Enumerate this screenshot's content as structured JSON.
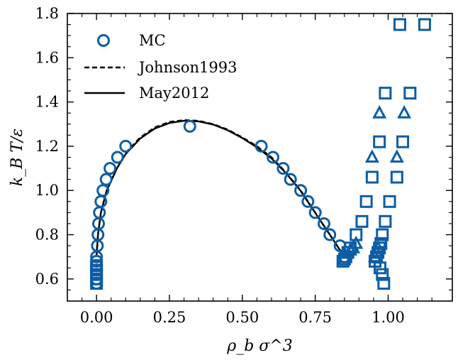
{
  "chart_data": {
    "type": "scatter",
    "xlabel": "ρ_b σ^3",
    "ylabel": "k_B T/ε",
    "xlim": [
      -0.1,
      1.22
    ],
    "ylim": [
      0.5,
      1.8
    ],
    "xticks": [
      "0.00",
      "0.25",
      "0.50",
      "0.75",
      "1.00"
    ],
    "yticks": [
      "0.6",
      "0.8",
      "1.0",
      "1.2",
      "1.4",
      "1.6",
      "1.8"
    ],
    "xtick_values": [
      0.0,
      0.25,
      0.5,
      0.75,
      1.0
    ],
    "ytick_values": [
      0.6,
      0.8,
      1.0,
      1.2,
      1.4,
      1.6,
      1.8
    ],
    "grid": false,
    "legend_position": "top-left",
    "colors": {
      "marker": "#0C5DA5",
      "line": "#000000"
    },
    "series": [
      {
        "name": "MC",
        "marker": "circle",
        "points": [
          [
            0.0,
            0.58
          ],
          [
            0.0,
            0.6
          ],
          [
            0.0,
            0.62
          ],
          [
            0.0,
            0.64
          ],
          [
            0.0,
            0.66
          ],
          [
            0.0,
            0.68
          ],
          [
            0.0,
            0.7
          ],
          [
            0.003,
            0.75
          ],
          [
            0.005,
            0.8
          ],
          [
            0.007,
            0.85
          ],
          [
            0.01,
            0.9
          ],
          [
            0.015,
            0.95
          ],
          [
            0.022,
            1.0
          ],
          [
            0.033,
            1.05
          ],
          [
            0.046,
            1.1
          ],
          [
            0.072,
            1.15
          ],
          [
            0.1,
            1.2
          ],
          [
            0.32,
            1.29
          ],
          [
            0.565,
            1.2
          ],
          [
            0.605,
            1.15
          ],
          [
            0.64,
            1.1
          ],
          [
            0.665,
            1.05
          ],
          [
            0.7,
            1.0
          ],
          [
            0.725,
            0.95
          ],
          [
            0.75,
            0.9
          ],
          [
            0.78,
            0.85
          ],
          [
            0.8,
            0.8
          ],
          [
            0.835,
            0.75
          ],
          [
            0.85,
            0.7
          ]
        ]
      },
      {
        "name": "",
        "marker": "square",
        "points": [
          [
            0.0,
            0.58
          ],
          [
            0.0,
            0.6
          ],
          [
            0.0,
            0.62
          ],
          [
            0.0,
            0.64
          ],
          [
            0.0,
            0.66
          ],
          [
            0.845,
            0.68
          ],
          [
            0.85,
            0.69
          ],
          [
            0.855,
            0.7
          ],
          [
            0.862,
            0.72
          ],
          [
            0.87,
            0.74
          ],
          [
            0.89,
            0.8
          ],
          [
            0.91,
            0.86
          ],
          [
            0.925,
            0.95
          ],
          [
            0.945,
            1.06
          ],
          [
            0.97,
            1.22
          ],
          [
            0.99,
            1.44
          ],
          [
            1.04,
            1.75
          ],
          [
            0.955,
            0.68
          ],
          [
            0.96,
            0.7
          ],
          [
            0.965,
            0.72
          ],
          [
            0.97,
            0.74
          ],
          [
            0.975,
            0.76
          ],
          [
            0.98,
            0.8
          ],
          [
            0.99,
            0.86
          ],
          [
            1.005,
            0.95
          ],
          [
            1.03,
            1.06
          ],
          [
            1.05,
            1.22
          ],
          [
            1.075,
            1.44
          ],
          [
            1.125,
            1.75
          ],
          [
            0.972,
            0.65
          ],
          [
            0.98,
            0.62
          ],
          [
            0.985,
            0.58
          ]
        ]
      },
      {
        "name": "",
        "marker": "triangle",
        "points": [
          [
            0.88,
            0.74
          ],
          [
            0.89,
            0.76
          ],
          [
            0.87,
            0.73
          ],
          [
            0.945,
            1.15
          ],
          [
            0.97,
            1.35
          ],
          [
            0.955,
            0.7
          ],
          [
            0.96,
            0.72
          ],
          [
            0.965,
            0.74
          ],
          [
            1.03,
            1.15
          ],
          [
            1.055,
            1.35
          ]
        ]
      },
      {
        "name": "Johnson1993",
        "style": "dashed",
        "points": [
          [
            0.0,
            0.7
          ],
          [
            0.005,
            0.8
          ],
          [
            0.015,
            0.9
          ],
          [
            0.035,
            1.0
          ],
          [
            0.07,
            1.1
          ],
          [
            0.1,
            1.17
          ],
          [
            0.15,
            1.24
          ],
          [
            0.2,
            1.285
          ],
          [
            0.25,
            1.31
          ],
          [
            0.3,
            1.318
          ],
          [
            0.35,
            1.315
          ],
          [
            0.4,
            1.3
          ],
          [
            0.45,
            1.275
          ],
          [
            0.5,
            1.24
          ],
          [
            0.55,
            1.2
          ],
          [
            0.6,
            1.15
          ],
          [
            0.65,
            1.08
          ],
          [
            0.7,
            1.0
          ],
          [
            0.75,
            0.9
          ],
          [
            0.8,
            0.8
          ],
          [
            0.85,
            0.7
          ]
        ]
      },
      {
        "name": "May2012",
        "style": "solid",
        "points": [
          [
            0.0,
            0.7
          ],
          [
            0.005,
            0.8
          ],
          [
            0.015,
            0.9
          ],
          [
            0.035,
            1.0
          ],
          [
            0.07,
            1.1
          ],
          [
            0.1,
            1.165
          ],
          [
            0.15,
            1.235
          ],
          [
            0.2,
            1.28
          ],
          [
            0.25,
            1.305
          ],
          [
            0.3,
            1.315
          ],
          [
            0.35,
            1.312
          ],
          [
            0.4,
            1.298
          ],
          [
            0.45,
            1.272
          ],
          [
            0.5,
            1.237
          ],
          [
            0.55,
            1.195
          ],
          [
            0.6,
            1.145
          ],
          [
            0.65,
            1.078
          ],
          [
            0.7,
            0.998
          ],
          [
            0.75,
            0.898
          ],
          [
            0.8,
            0.8
          ],
          [
            0.85,
            0.7
          ]
        ]
      }
    ]
  }
}
